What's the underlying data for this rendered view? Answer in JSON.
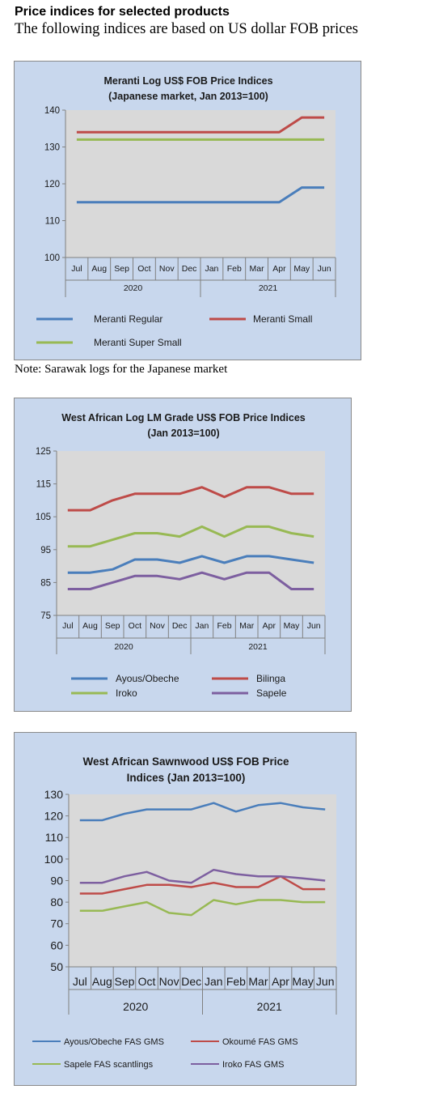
{
  "header": {
    "title": "Price indices for selected products",
    "subtitle": "The following indices are based on US dollar FOB prices"
  },
  "note": "Note: Sarawak logs for the Japanese market",
  "chart_data": [
    {
      "type": "line",
      "title": [
        "Meranti Log US$ FOB Price Indices",
        "(Japanese market, Jan 2013=100)"
      ],
      "categories": [
        "Jul",
        "Aug",
        "Sep",
        "Oct",
        "Nov",
        "Dec",
        "Jan",
        "Feb",
        "Mar",
        "Apr",
        "May",
        "Jun"
      ],
      "year_groups": [
        {
          "label": "2020",
          "count": 6
        },
        {
          "label": "2021",
          "count": 6
        }
      ],
      "ylim": [
        100,
        140
      ],
      "yticks": [
        100,
        110,
        120,
        130,
        140
      ],
      "grid": false,
      "legend_position": "bottom",
      "series": [
        {
          "name": "Meranti Regular",
          "color": "#4a7ebb",
          "values": [
            115,
            115,
            115,
            115,
            115,
            115,
            115,
            115,
            115,
            115,
            119,
            119
          ]
        },
        {
          "name": "Meranti Small",
          "color": "#be4b48",
          "values": [
            134,
            134,
            134,
            134,
            134,
            134,
            134,
            134,
            134,
            134,
            138,
            138
          ]
        },
        {
          "name": "Meranti Super Small",
          "color": "#98b954",
          "values": [
            132,
            132,
            132,
            132,
            132,
            132,
            132,
            132,
            132,
            132,
            132,
            132
          ]
        }
      ]
    },
    {
      "type": "line",
      "title": [
        "West African Log LM Grade US$ FOB Price Indices",
        "(Jan 2013=100)"
      ],
      "categories": [
        "Jul",
        "Aug",
        "Sep",
        "Oct",
        "Nov",
        "Dec",
        "Jan",
        "Feb",
        "Mar",
        "Apr",
        "May",
        "Jun"
      ],
      "year_groups": [
        {
          "label": "2020",
          "count": 6
        },
        {
          "label": "2021",
          "count": 6
        }
      ],
      "ylim": [
        75,
        125
      ],
      "yticks": [
        75,
        85,
        95,
        105,
        115,
        125
      ],
      "grid": false,
      "legend_position": "bottom",
      "series": [
        {
          "name": "Ayous/Obeche",
          "color": "#4a7ebb",
          "values": [
            88,
            88,
            89,
            92,
            92,
            91,
            93,
            91,
            93,
            93,
            92,
            91
          ]
        },
        {
          "name": "Bilinga",
          "color": "#be4b48",
          "values": [
            107,
            107,
            110,
            112,
            112,
            112,
            114,
            111,
            114,
            114,
            112,
            112
          ]
        },
        {
          "name": "Iroko",
          "color": "#98b954",
          "values": [
            96,
            96,
            98,
            100,
            100,
            99,
            102,
            99,
            102,
            102,
            100,
            99
          ]
        },
        {
          "name": "Sapele",
          "color": "#7d5fa0",
          "values": [
            83,
            83,
            85,
            87,
            87,
            86,
            88,
            86,
            88,
            88,
            83,
            83
          ]
        }
      ]
    },
    {
      "type": "line",
      "title": [
        "West African Sawnwood US$ FOB Price",
        "Indices (Jan 2013=100)"
      ],
      "categories": [
        "Jul",
        "Aug",
        "Sep",
        "Oct",
        "Nov",
        "Dec",
        "Jan",
        "Feb",
        "Mar",
        "Apr",
        "May",
        "Jun"
      ],
      "year_groups": [
        {
          "label": "2020",
          "count": 6
        },
        {
          "label": "2021",
          "count": 6
        }
      ],
      "ylim": [
        50,
        130
      ],
      "yticks": [
        50,
        60,
        70,
        80,
        90,
        100,
        110,
        120,
        130
      ],
      "grid": false,
      "legend_position": "bottom",
      "series": [
        {
          "name": "Ayous/Obeche FAS GMS",
          "color": "#4a7ebb",
          "values": [
            118,
            118,
            121,
            123,
            123,
            123,
            126,
            122,
            125,
            126,
            124,
            123
          ]
        },
        {
          "name": "Okoumé FAS GMS",
          "color": "#be4b48",
          "values": [
            84,
            84,
            86,
            88,
            88,
            87,
            89,
            87,
            87,
            92,
            86,
            86
          ]
        },
        {
          "name": "Sapele FAS scantlings",
          "color": "#98b954",
          "values": [
            76,
            76,
            78,
            80,
            75,
            74,
            81,
            79,
            81,
            81,
            80,
            80
          ]
        },
        {
          "name": "Iroko FAS GMS",
          "color": "#7d5fa0",
          "values": [
            89,
            89,
            92,
            94,
            90,
            89,
            95,
            93,
            92,
            92,
            91,
            90
          ]
        }
      ]
    }
  ]
}
